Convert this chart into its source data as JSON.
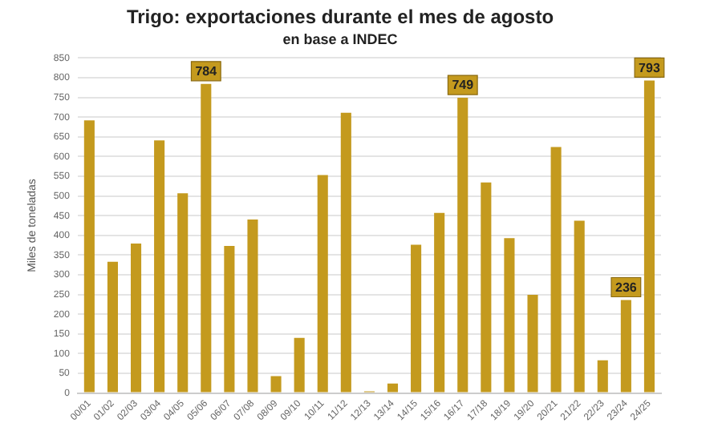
{
  "chart_data": {
    "type": "bar",
    "title": "Trigo: exportaciones durante el mes de agosto",
    "subtitle": "en base a INDEC",
    "ylabel": "Miles de toneladas",
    "categories": [
      "00/01",
      "01/02",
      "02/03",
      "03/04",
      "04/05",
      "05/06",
      "06/07",
      "07/08",
      "08/09",
      "09/10",
      "10/11",
      "11/12",
      "12/13",
      "13/14",
      "14/15",
      "15/16",
      "16/17",
      "17/18",
      "18/19",
      "19/20",
      "20/21",
      "21/22",
      "22/23",
      "23/24",
      "24/25"
    ],
    "values": [
      692,
      333,
      379,
      641,
      507,
      784,
      373,
      440,
      43,
      140,
      553,
      711,
      4,
      24,
      376,
      457,
      749,
      534,
      393,
      249,
      624,
      437,
      83,
      236,
      793
    ],
    "value_labels": [
      null,
      null,
      null,
      null,
      null,
      "784",
      null,
      null,
      null,
      null,
      null,
      null,
      null,
      null,
      null,
      null,
      "749",
      null,
      null,
      null,
      null,
      null,
      null,
      "236",
      "793"
    ],
    "color": "#c49a1e",
    "ylim": [
      0,
      850
    ],
    "yticks": [
      0,
      50,
      100,
      150,
      200,
      250,
      300,
      350,
      400,
      450,
      500,
      550,
      600,
      650,
      700,
      750,
      800,
      850
    ],
    "grid": "y",
    "legend": false
  }
}
